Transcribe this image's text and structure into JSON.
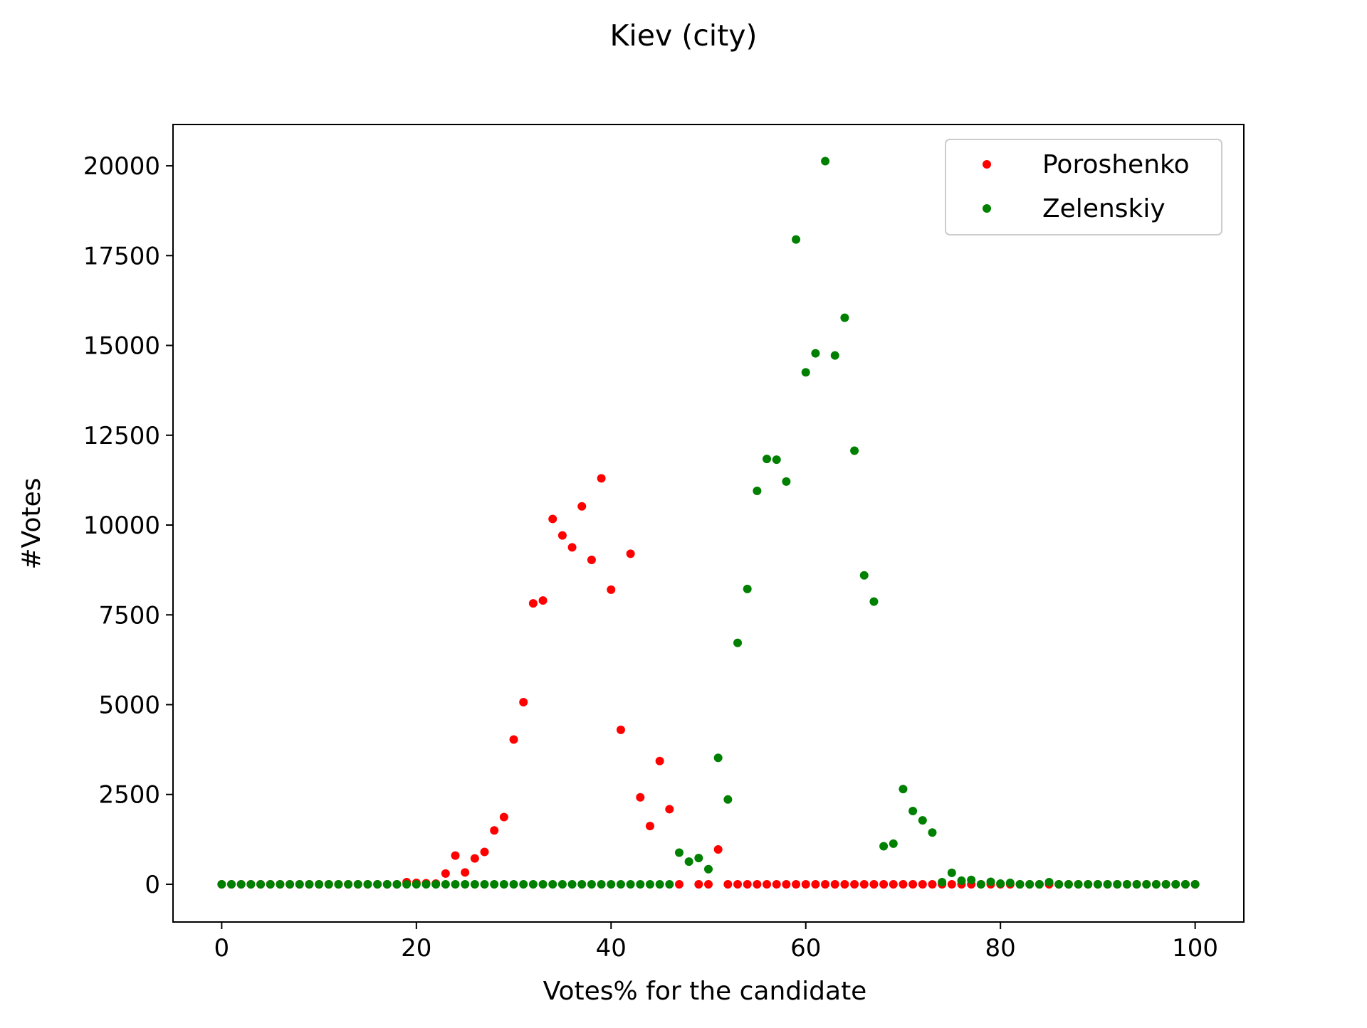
{
  "chart_data": {
    "type": "scatter",
    "title": "Kiev (city)",
    "xlabel": "Votes% for the candidate",
    "ylabel": "#Votes",
    "xlim": [
      -5,
      105
    ],
    "ylim": [
      -1050,
      21150
    ],
    "xticks": [
      0,
      20,
      40,
      60,
      80,
      100
    ],
    "yticks": [
      0,
      2500,
      5000,
      7500,
      10000,
      12500,
      15000,
      17500,
      20000
    ],
    "grid": false,
    "legend": "top-right",
    "series": [
      {
        "name": "Poroshenko",
        "color": "#ff0000",
        "points": [
          [
            0,
            0
          ],
          [
            1,
            0
          ],
          [
            2,
            0
          ],
          [
            3,
            0
          ],
          [
            4,
            0
          ],
          [
            5,
            0
          ],
          [
            6,
            0
          ],
          [
            7,
            0
          ],
          [
            8,
            0
          ],
          [
            9,
            0
          ],
          [
            10,
            0
          ],
          [
            11,
            0
          ],
          [
            12,
            0
          ],
          [
            13,
            0
          ],
          [
            14,
            0
          ],
          [
            15,
            0
          ],
          [
            16,
            0
          ],
          [
            17,
            0
          ],
          [
            18,
            0
          ],
          [
            19,
            60
          ],
          [
            20,
            40
          ],
          [
            21,
            30
          ],
          [
            22,
            20
          ],
          [
            23,
            300
          ],
          [
            24,
            800
          ],
          [
            25,
            330
          ],
          [
            26,
            720
          ],
          [
            27,
            900
          ],
          [
            28,
            1500
          ],
          [
            29,
            1870
          ],
          [
            30,
            4030
          ],
          [
            31,
            5070
          ],
          [
            32,
            7820
          ],
          [
            33,
            7900
          ],
          [
            34,
            10170
          ],
          [
            35,
            9710
          ],
          [
            36,
            9380
          ],
          [
            37,
            10520
          ],
          [
            38,
            9030
          ],
          [
            39,
            11300
          ],
          [
            40,
            8200
          ],
          [
            41,
            4300
          ],
          [
            42,
            9200
          ],
          [
            43,
            2420
          ],
          [
            44,
            1620
          ],
          [
            45,
            3430
          ],
          [
            46,
            2090
          ],
          [
            47,
            0
          ],
          [
            49,
            0
          ],
          [
            50,
            0
          ],
          [
            51,
            970
          ],
          [
            52,
            0
          ],
          [
            53,
            0
          ],
          [
            54,
            0
          ],
          [
            55,
            0
          ],
          [
            56,
            0
          ],
          [
            57,
            0
          ],
          [
            58,
            0
          ],
          [
            59,
            0
          ],
          [
            60,
            0
          ],
          [
            61,
            0
          ],
          [
            62,
            0
          ],
          [
            63,
            0
          ],
          [
            64,
            0
          ],
          [
            65,
            0
          ],
          [
            66,
            0
          ],
          [
            67,
            0
          ],
          [
            68,
            0
          ],
          [
            69,
            0
          ],
          [
            70,
            0
          ],
          [
            71,
            0
          ],
          [
            72,
            0
          ],
          [
            73,
            0
          ],
          [
            74,
            0
          ],
          [
            75,
            0
          ],
          [
            76,
            0
          ],
          [
            77,
            0
          ],
          [
            78,
            0
          ],
          [
            79,
            0
          ],
          [
            80,
            0
          ],
          [
            81,
            0
          ],
          [
            82,
            0
          ],
          [
            83,
            0
          ],
          [
            84,
            0
          ],
          [
            85,
            0
          ],
          [
            86,
            0
          ],
          [
            87,
            0
          ],
          [
            88,
            0
          ],
          [
            89,
            0
          ],
          [
            90,
            0
          ],
          [
            91,
            0
          ],
          [
            92,
            0
          ],
          [
            93,
            0
          ],
          [
            94,
            0
          ],
          [
            95,
            0
          ],
          [
            96,
            0
          ],
          [
            97,
            0
          ],
          [
            98,
            0
          ],
          [
            99,
            0
          ],
          [
            100,
            0
          ]
        ]
      },
      {
        "name": "Zelenskiy",
        "color": "#008000",
        "points": [
          [
            0,
            0
          ],
          [
            1,
            0
          ],
          [
            2,
            0
          ],
          [
            3,
            0
          ],
          [
            4,
            0
          ],
          [
            5,
            0
          ],
          [
            6,
            0
          ],
          [
            7,
            0
          ],
          [
            8,
            0
          ],
          [
            9,
            0
          ],
          [
            10,
            0
          ],
          [
            11,
            0
          ],
          [
            12,
            0
          ],
          [
            13,
            0
          ],
          [
            14,
            0
          ],
          [
            15,
            0
          ],
          [
            16,
            0
          ],
          [
            17,
            0
          ],
          [
            18,
            0
          ],
          [
            19,
            0
          ],
          [
            20,
            0
          ],
          [
            21,
            0
          ],
          [
            22,
            0
          ],
          [
            23,
            0
          ],
          [
            24,
            0
          ],
          [
            25,
            0
          ],
          [
            26,
            0
          ],
          [
            27,
            0
          ],
          [
            28,
            0
          ],
          [
            29,
            0
          ],
          [
            30,
            0
          ],
          [
            31,
            0
          ],
          [
            32,
            0
          ],
          [
            33,
            0
          ],
          [
            34,
            0
          ],
          [
            35,
            0
          ],
          [
            36,
            0
          ],
          [
            37,
            0
          ],
          [
            38,
            0
          ],
          [
            39,
            0
          ],
          [
            40,
            0
          ],
          [
            41,
            0
          ],
          [
            42,
            0
          ],
          [
            43,
            0
          ],
          [
            44,
            0
          ],
          [
            45,
            0
          ],
          [
            46,
            0
          ],
          [
            47,
            880
          ],
          [
            48,
            630
          ],
          [
            49,
            730
          ],
          [
            50,
            420
          ],
          [
            51,
            3520
          ],
          [
            52,
            2360
          ],
          [
            53,
            6720
          ],
          [
            54,
            8220
          ],
          [
            55,
            10950
          ],
          [
            56,
            11840
          ],
          [
            57,
            11820
          ],
          [
            58,
            11210
          ],
          [
            59,
            17950
          ],
          [
            60,
            14250
          ],
          [
            61,
            14780
          ],
          [
            62,
            20130
          ],
          [
            63,
            14720
          ],
          [
            64,
            15770
          ],
          [
            65,
            12070
          ],
          [
            66,
            8600
          ],
          [
            67,
            7870
          ],
          [
            68,
            1060
          ],
          [
            69,
            1130
          ],
          [
            70,
            2650
          ],
          [
            71,
            2040
          ],
          [
            72,
            1780
          ],
          [
            73,
            1440
          ],
          [
            74,
            60
          ],
          [
            75,
            320
          ],
          [
            76,
            100
          ],
          [
            77,
            120
          ],
          [
            78,
            0
          ],
          [
            79,
            70
          ],
          [
            80,
            20
          ],
          [
            81,
            40
          ],
          [
            82,
            0
          ],
          [
            83,
            0
          ],
          [
            84,
            0
          ],
          [
            85,
            60
          ],
          [
            86,
            0
          ],
          [
            87,
            0
          ],
          [
            88,
            0
          ],
          [
            89,
            0
          ],
          [
            90,
            0
          ],
          [
            91,
            0
          ],
          [
            92,
            0
          ],
          [
            93,
            0
          ],
          [
            94,
            0
          ],
          [
            95,
            0
          ],
          [
            96,
            0
          ],
          [
            97,
            0
          ],
          [
            98,
            0
          ],
          [
            99,
            0
          ],
          [
            100,
            0
          ]
        ]
      }
    ]
  }
}
